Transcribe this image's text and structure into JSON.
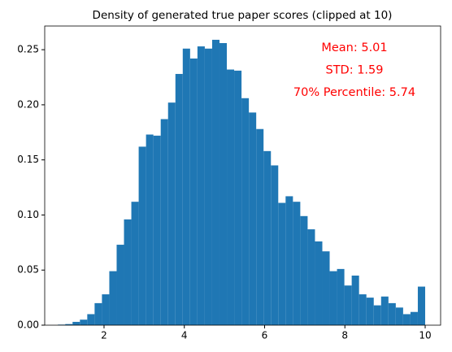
{
  "chart_data": {
    "type": "histogram",
    "title": "Density of generated true paper scores (clipped at 10)",
    "annotations": [
      "Mean: 5.01",
      "STD: 1.59",
      "70% Percentile: 5.74"
    ],
    "annotation_color": "red",
    "color": "#1f77b4",
    "bins": [
      0.85,
      1.033,
      1.216,
      1.399,
      1.582,
      1.765,
      1.948,
      2.131,
      2.314,
      2.497,
      2.68,
      2.863,
      3.046,
      3.229,
      3.412,
      3.595,
      3.778,
      3.961,
      4.144,
      4.327,
      4.51,
      4.693,
      4.876,
      5.059,
      5.242,
      5.425,
      5.608,
      5.791,
      5.974,
      6.157,
      6.34,
      6.523,
      6.706,
      6.889,
      7.072,
      7.255,
      7.438,
      7.621,
      7.804,
      7.987,
      8.17,
      8.353,
      8.536,
      8.719,
      8.902,
      9.085,
      9.268,
      9.451,
      9.634,
      9.817,
      10.0
    ],
    "values": [
      0.0005,
      0.001,
      0.003,
      0.005,
      0.01,
      0.02,
      0.028,
      0.049,
      0.073,
      0.096,
      0.112,
      0.162,
      0.173,
      0.172,
      0.187,
      0.202,
      0.228,
      0.251,
      0.242,
      0.253,
      0.251,
      0.259,
      0.256,
      0.232,
      0.231,
      0.206,
      0.193,
      0.178,
      0.158,
      0.145,
      0.111,
      0.117,
      0.112,
      0.099,
      0.087,
      0.076,
      0.067,
      0.049,
      0.051,
      0.036,
      0.045,
      0.028,
      0.025,
      0.018,
      0.026,
      0.02,
      0.016,
      0.01,
      0.012,
      0.035
    ],
    "xlim": [
      0.522,
      10.385
    ],
    "ylim": [
      0,
      0.2715
    ],
    "xticks": [
      2,
      4,
      6,
      8,
      10
    ],
    "yticks": [
      {
        "value": 0,
        "label": "0.00"
      },
      0.05,
      {
        "value": 0.1,
        "label": "0.10"
      },
      0.15,
      {
        "value": 0.2,
        "label": "0.20"
      },
      0.25
    ],
    "grid": false
  }
}
